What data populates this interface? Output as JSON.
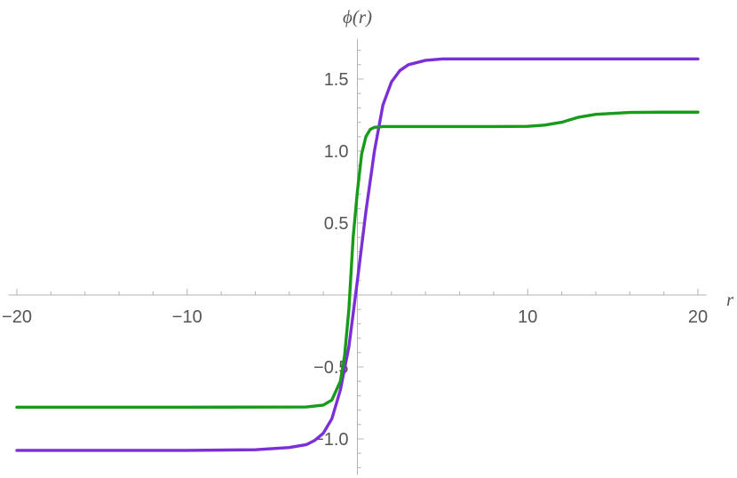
{
  "chart_data": {
    "type": "line",
    "xlabel": "r",
    "ylabel": "ϕ(r)",
    "xlim": [
      -20.5,
      20.5
    ],
    "ylim": [
      -1.25,
      1.78
    ],
    "x_ticks": [
      {
        "value": -20,
        "label": "−20"
      },
      {
        "value": -10,
        "label": "−10"
      },
      {
        "value": 10,
        "label": "10"
      },
      {
        "value": 20,
        "label": "20"
      }
    ],
    "y_ticks": [
      {
        "value": -1.0,
        "label": "−1.0"
      },
      {
        "value": -0.5,
        "label": "−0.5"
      },
      {
        "value": 0.5,
        "label": "0.5"
      },
      {
        "value": 1.0,
        "label": "1.0"
      },
      {
        "value": 1.5,
        "label": "1.5"
      }
    ],
    "series": [
      {
        "color": "#7b2fd6",
        "x": [
          -20,
          -10,
          -6,
          -4,
          -3,
          -2.5,
          -2,
          -1.5,
          -1,
          -0.5,
          0,
          0.5,
          1,
          1.5,
          2,
          2.5,
          3,
          4,
          5,
          6,
          8,
          10,
          15,
          20
        ],
        "y": [
          -1.08,
          -1.08,
          -1.075,
          -1.06,
          -1.04,
          -1.01,
          -0.96,
          -0.86,
          -0.66,
          -0.36,
          0.1,
          0.58,
          1.0,
          1.32,
          1.48,
          1.56,
          1.6,
          1.63,
          1.64,
          1.64,
          1.64,
          1.64,
          1.64,
          1.64
        ]
      },
      {
        "color": "#1a9a1a",
        "x": [
          -20,
          -10,
          -3,
          -2,
          -1.5,
          -1,
          -0.75,
          -0.5,
          -0.25,
          0,
          0.25,
          0.5,
          0.75,
          1,
          1.5,
          2,
          4,
          8,
          10,
          11,
          12,
          13,
          14,
          16,
          18,
          20
        ],
        "y": [
          -0.78,
          -0.78,
          -0.778,
          -0.765,
          -0.73,
          -0.6,
          -0.42,
          -0.1,
          0.4,
          0.72,
          0.98,
          1.1,
          1.15,
          1.165,
          1.17,
          1.17,
          1.17,
          1.17,
          1.172,
          1.18,
          1.2,
          1.235,
          1.255,
          1.268,
          1.27,
          1.27
        ]
      }
    ]
  }
}
